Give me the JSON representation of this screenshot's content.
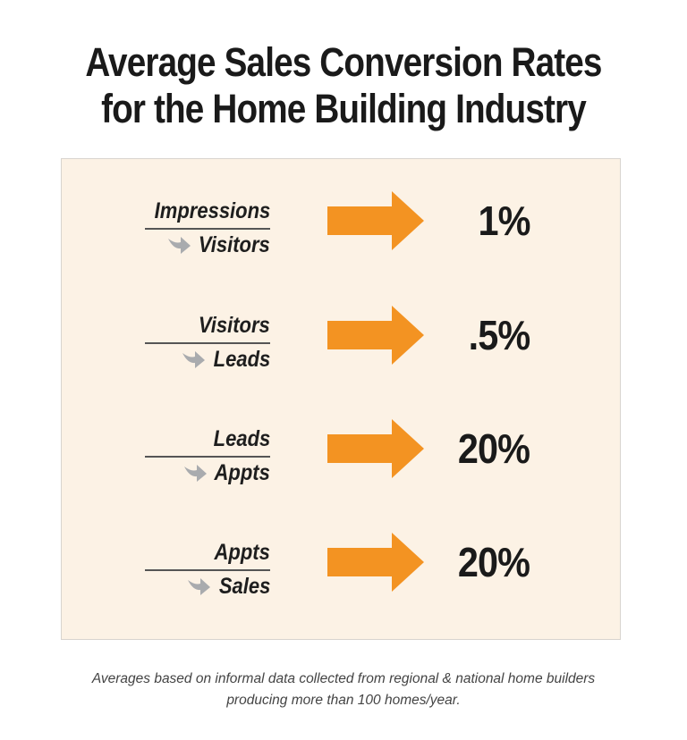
{
  "title": {
    "line1": "Average Sales Conversion Rates",
    "line2": "for the Home Building Industry"
  },
  "colors": {
    "arrow": "#f39322",
    "panel": "#fcf2e5",
    "chevron": "#a9abae"
  },
  "rows": [
    {
      "from": "Impressions",
      "to": "Visitors",
      "value": "1%"
    },
    {
      "from": "Visitors",
      "to": "Leads",
      "value": ".5%"
    },
    {
      "from": "Leads",
      "to": "Appts",
      "value": "20%"
    },
    {
      "from": "Appts",
      "to": "Sales",
      "value": "20%"
    }
  ],
  "footer": {
    "line1": "Averages based on informal data collected from regional & national home builders",
    "line2": "producing more than 100 homes/year."
  },
  "chart_data": {
    "type": "table",
    "title": "Average Sales Conversion Rates for the Home Building Industry",
    "categories": [
      "Impressions → Visitors",
      "Visitors → Leads",
      "Leads → Appts",
      "Appts → Sales"
    ],
    "values": [
      1,
      0.5,
      20,
      20
    ],
    "unit": "%"
  }
}
